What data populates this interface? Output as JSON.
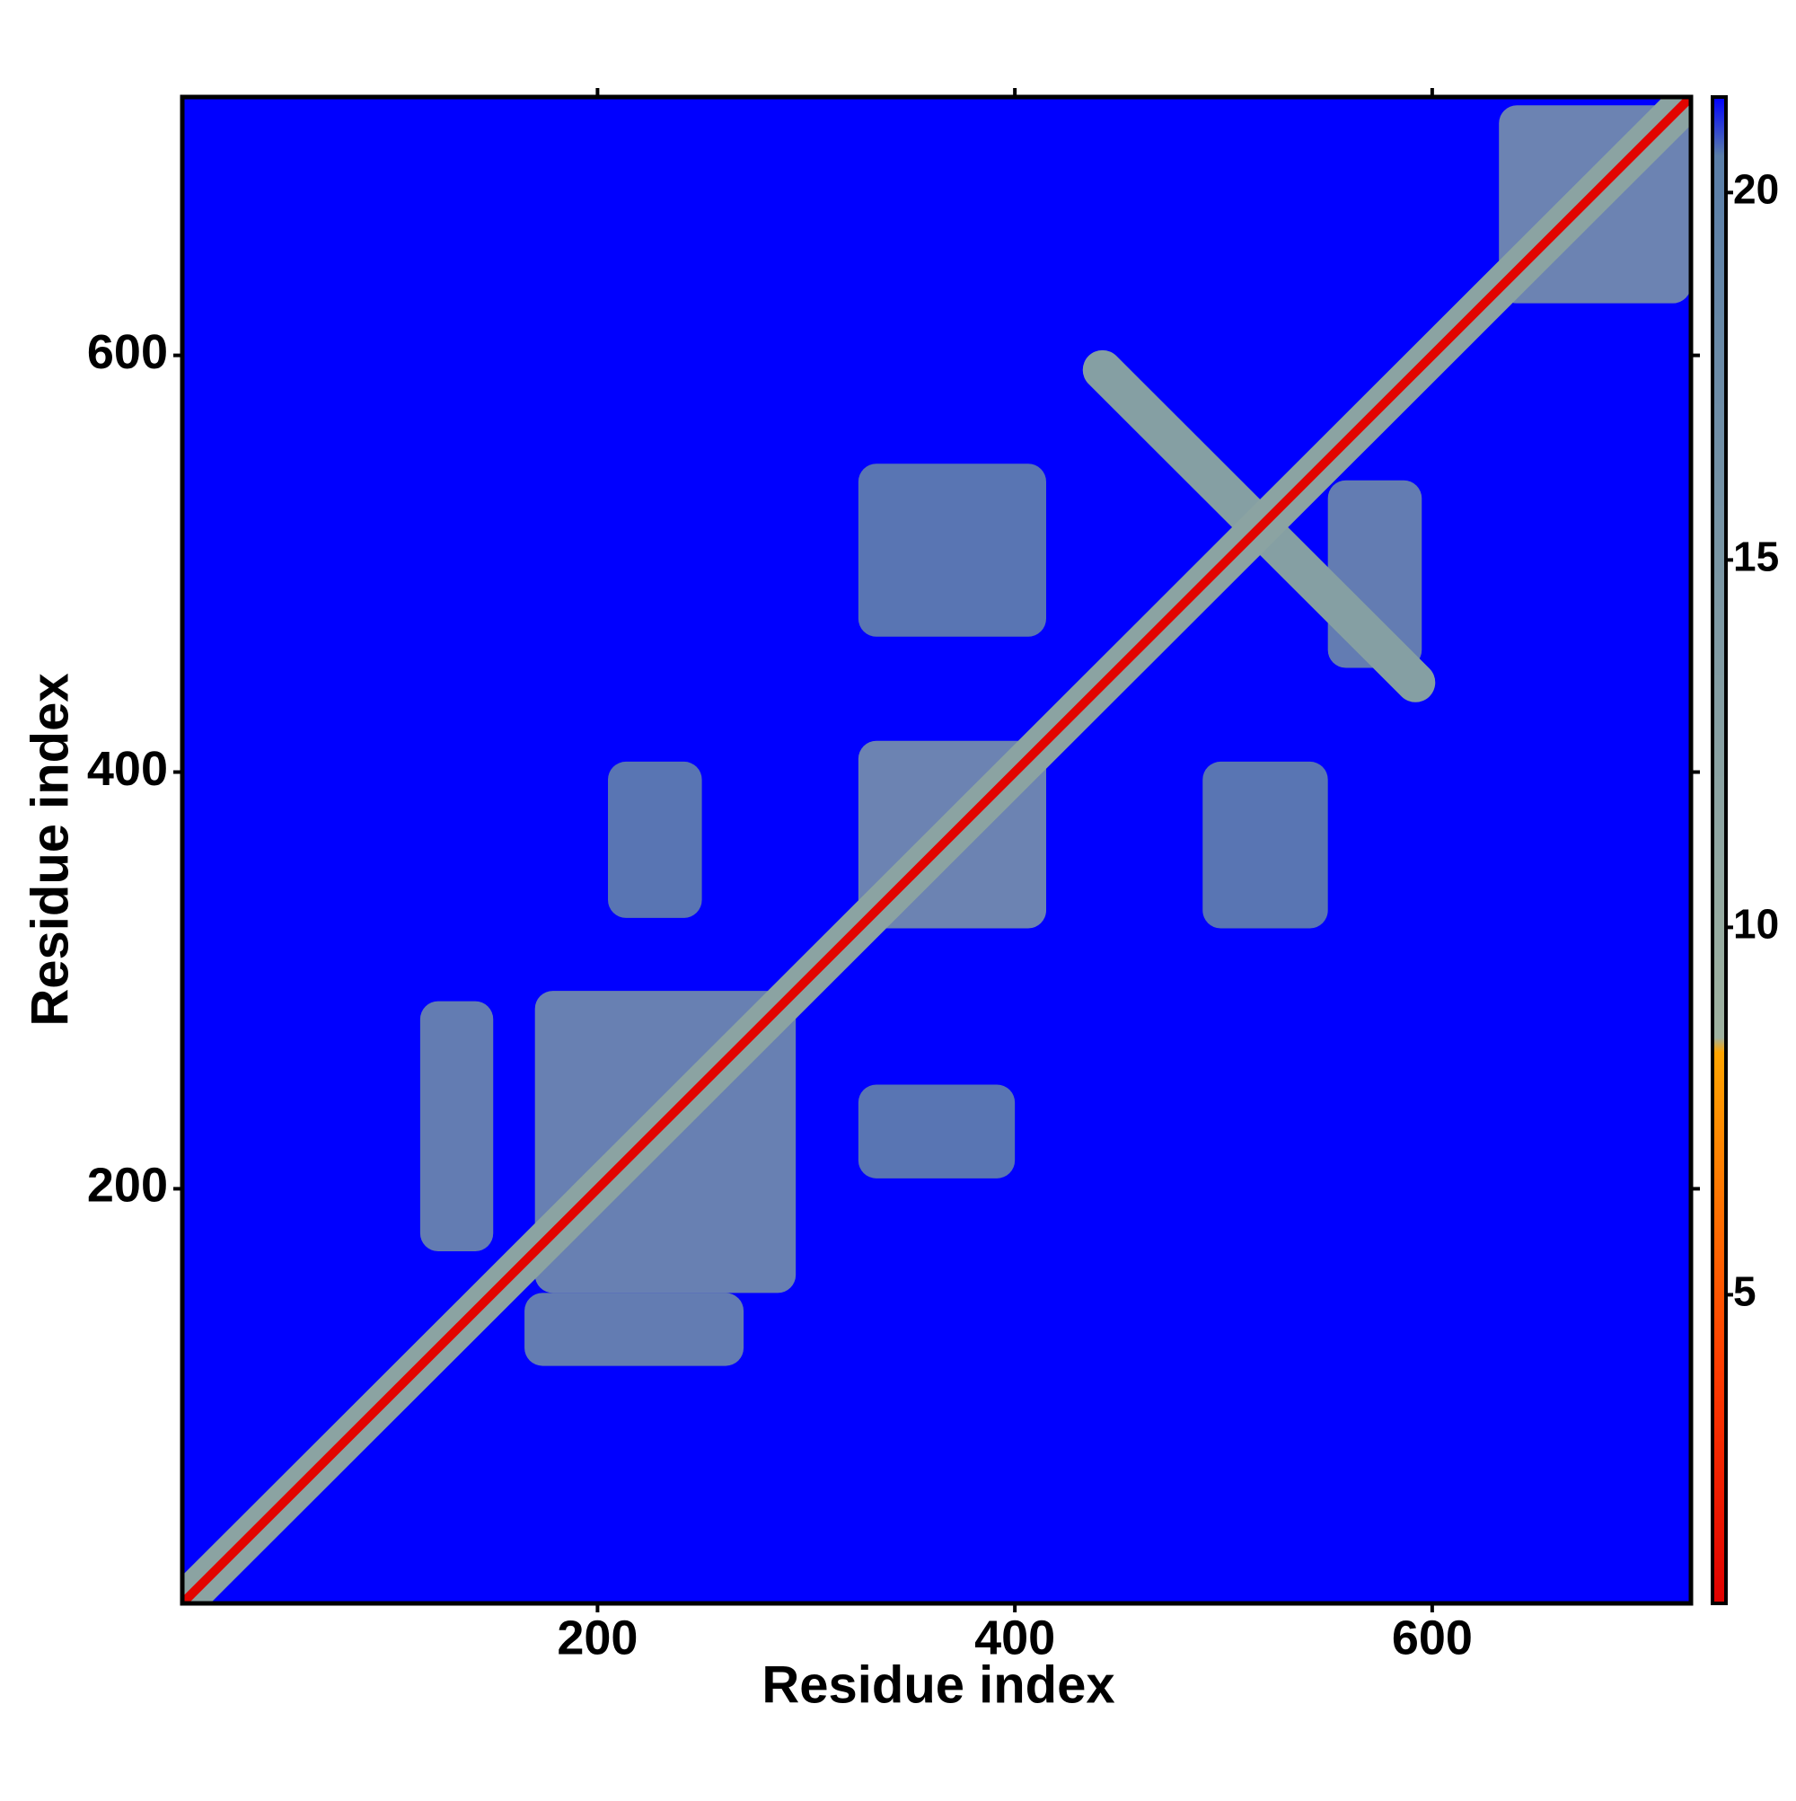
{
  "chart_data": {
    "type": "contact_map",
    "xlabel": "Residue index",
    "ylabel": "Residue index",
    "xlim": [
      1,
      724
    ],
    "ylim": [
      1,
      724
    ],
    "xticks": [
      200,
      400,
      600
    ],
    "yticks": [
      200,
      400,
      600
    ],
    "background": {
      "value": 21.3,
      "color": "#0000ff"
    },
    "regions": [
      {
        "shape": "rect",
        "x": [
          170,
          295
        ],
        "y": [
          150,
          295
        ],
        "value": 15
      },
      {
        "shape": "rect",
        "x": [
          115,
          150
        ],
        "y": [
          170,
          290
        ],
        "value": 16
      },
      {
        "shape": "rect",
        "x": [
          165,
          270
        ],
        "y": [
          115,
          150
        ],
        "value": 16
      },
      {
        "shape": "rect",
        "x": [
          325,
          415
        ],
        "y": [
          325,
          415
        ],
        "value": 14
      },
      {
        "shape": "rect",
        "x": [
          632,
          724
        ],
        "y": [
          625,
          720
        ],
        "value": 14
      },
      {
        "shape": "rect",
        "x": [
          550,
          595
        ],
        "y": [
          450,
          540
        ],
        "value": 16
      },
      {
        "shape": "rect",
        "x": [
          325,
          415
        ],
        "y": [
          465,
          548
        ],
        "value": 18
      },
      {
        "shape": "rect",
        "x": [
          490,
          550
        ],
        "y": [
          325,
          405
        ],
        "value": 18
      },
      {
        "shape": "rect",
        "x": [
          205,
          250
        ],
        "y": [
          330,
          405
        ],
        "value": 18
      },
      {
        "shape": "rect",
        "x": [
          325,
          400
        ],
        "y": [
          205,
          250
        ],
        "value": 18
      },
      {
        "shape": "line",
        "x": [
          442,
          592
        ],
        "y": [
          593,
          443
        ],
        "value": 13
      },
      {
        "shape": "line",
        "x": [
          1,
          724
        ],
        "y": [
          1,
          724
        ],
        "value": 12
      },
      {
        "shape": "line",
        "x": [
          1,
          724
        ],
        "y": [
          1,
          724
        ],
        "value": 1
      }
    ],
    "colorbar": {
      "lim": [
        0.8,
        21.3
      ],
      "ticks": [
        5,
        10,
        15,
        20
      ],
      "stops": [
        {
          "value": 0.8,
          "color": "#e00000"
        },
        {
          "value": 4,
          "color": "#ff3c00"
        },
        {
          "value": 8.3,
          "color": "#ffa500"
        },
        {
          "value": 8.5,
          "color": "#9fb2a0"
        },
        {
          "value": 20.5,
          "color": "#5a7ea8"
        },
        {
          "value": 21.3,
          "color": "#0000ff"
        }
      ]
    }
  }
}
